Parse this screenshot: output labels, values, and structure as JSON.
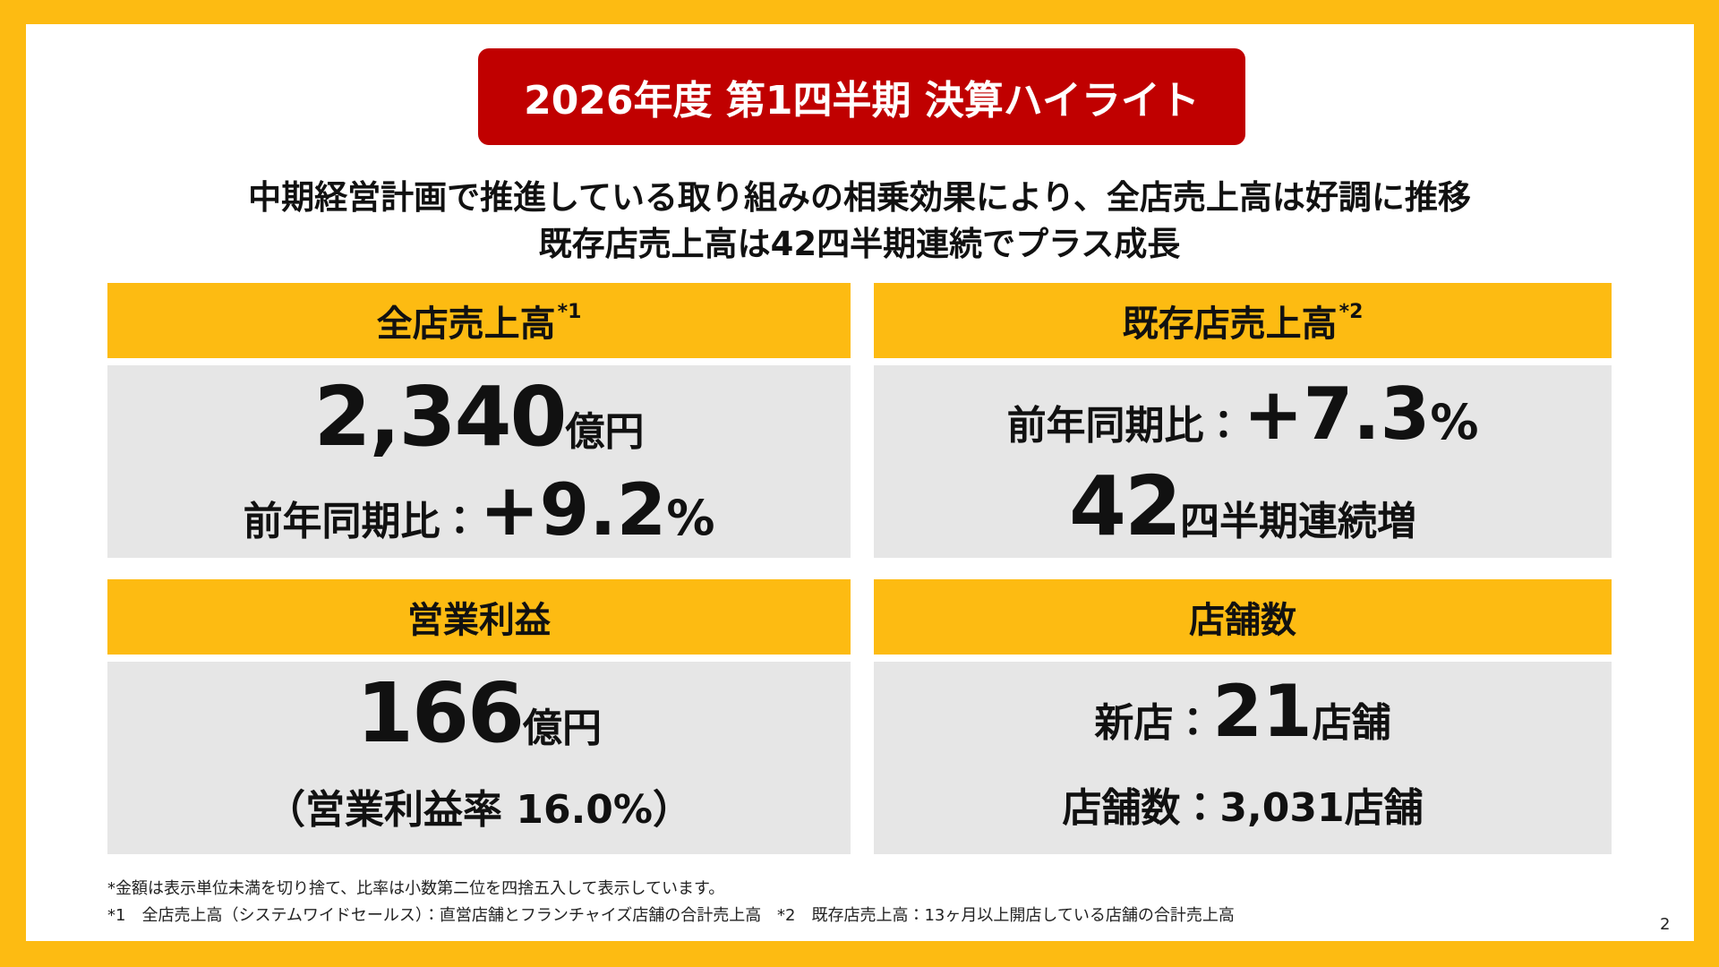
{
  "header": {
    "title": "2026年度 第1四半期 決算ハイライト"
  },
  "summary": [
    "中期経営計画で推進している取り組みの相乗効果により、全店売上高は好調に推移",
    "既存店売上高は42四半期連続でプラス成長"
  ],
  "panels": [
    {
      "title": "全店売上高",
      "note_ref": "*1",
      "lines": [
        [
          "2,340",
          "億円"
        ],
        [
          "前年同期比：",
          "+9.2",
          "%"
        ]
      ]
    },
    {
      "title": "既存店売上高",
      "note_ref": "*2",
      "lines": [
        [
          "前年同期比：",
          "+7.3",
          "%"
        ],
        [
          "42",
          "四半期連続増"
        ]
      ]
    },
    {
      "title": "営業利益",
      "lines": [
        [
          "166",
          "億円"
        ],
        [
          "（営業利益率 16.0%）"
        ]
      ]
    },
    {
      "title": "店舗数",
      "lines": [
        [
          "新店：",
          "21",
          "店舗"
        ],
        [
          "店舗数：3,031店舗"
        ]
      ]
    }
  ],
  "footnotes": [
    "*金額は表示単位未満を切り捨て、比率は小数第二位を四捨五入して表示しています。",
    "*1　全店売上高（システムワイドセールス）：直営店舗とフランチャイズ店舗の合計売上高",
    "*2　既存店売上高：13ヶ月以上開店している店舗の合計売上高"
  ],
  "page_number": "2"
}
